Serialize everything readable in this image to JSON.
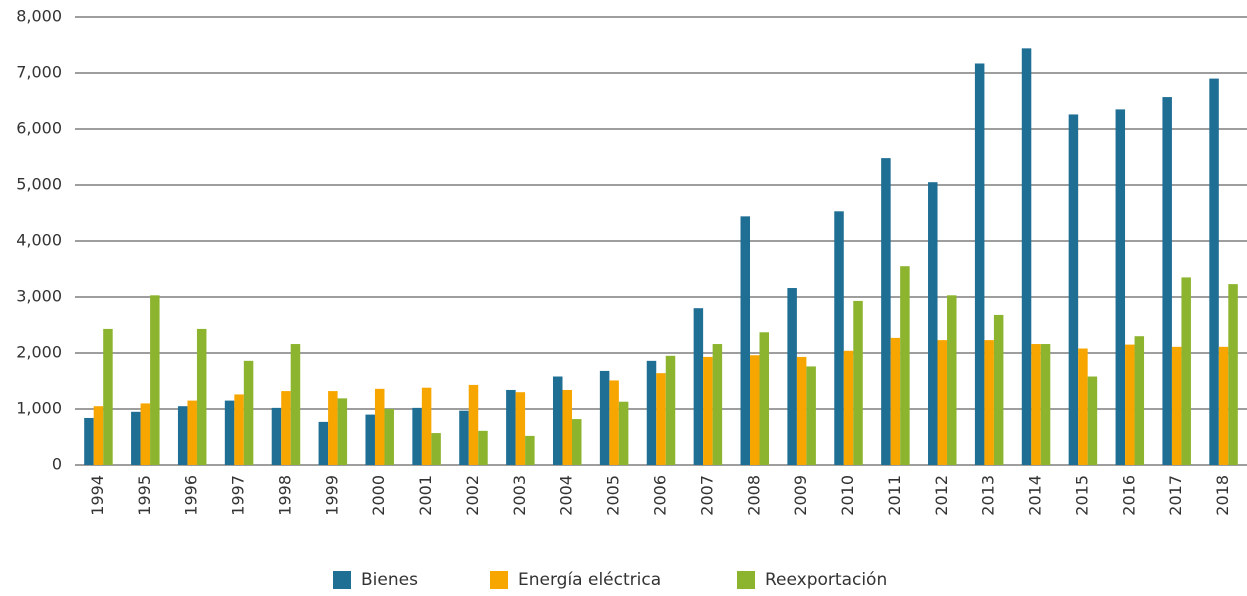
{
  "chart_data": {
    "type": "bar",
    "categories": [
      "1994",
      "1995",
      "1996",
      "1997",
      "1998",
      "1999",
      "2000",
      "2001",
      "2002",
      "2003",
      "2004",
      "2005",
      "2006",
      "2007",
      "2008",
      "2009",
      "2010",
      "2011",
      "2012",
      "2013",
      "2014",
      "2015",
      "2016",
      "2017",
      "2018"
    ],
    "series": [
      {
        "name": "Bienes",
        "color": "#1f6e94",
        "values": [
          840,
          950,
          1050,
          1150,
          1020,
          770,
          900,
          1020,
          970,
          1340,
          1580,
          1680,
          1860,
          2800,
          4440,
          3160,
          4530,
          5480,
          5050,
          7170,
          7440,
          6260,
          6350,
          6570,
          6900
        ]
      },
      {
        "name": "Energía eléctrica",
        "color": "#f7a600",
        "values": [
          1050,
          1100,
          1150,
          1260,
          1320,
          1320,
          1360,
          1380,
          1430,
          1300,
          1340,
          1510,
          1640,
          1930,
          1960,
          1930,
          2040,
          2270,
          2230,
          2230,
          2160,
          2080,
          2150,
          2110,
          2110
        ]
      },
      {
        "name": "Reexportación",
        "color": "#8db42e",
        "values": [
          2430,
          3030,
          2430,
          1860,
          2160,
          1190,
          1000,
          570,
          610,
          520,
          820,
          1130,
          1950,
          2160,
          2370,
          1760,
          2930,
          3550,
          3030,
          2680,
          2160,
          1580,
          2300,
          3350,
          3230
        ]
      }
    ],
    "ylim": [
      0,
      8000
    ],
    "yticks": [
      0,
      {
        "value": 1000,
        "label": "1,000"
      },
      {
        "value": 2000,
        "label": "2,000"
      },
      {
        "value": 3000,
        "label": "3,000"
      },
      {
        "value": 4000,
        "label": "4,000"
      },
      {
        "value": 5000,
        "label": "5,000"
      },
      {
        "value": 6000,
        "label": "6,000"
      },
      {
        "value": 7000,
        "label": "7,000"
      },
      {
        "value": 8000,
        "label": "8,000"
      }
    ],
    "grid": true,
    "legend": "bottom"
  }
}
